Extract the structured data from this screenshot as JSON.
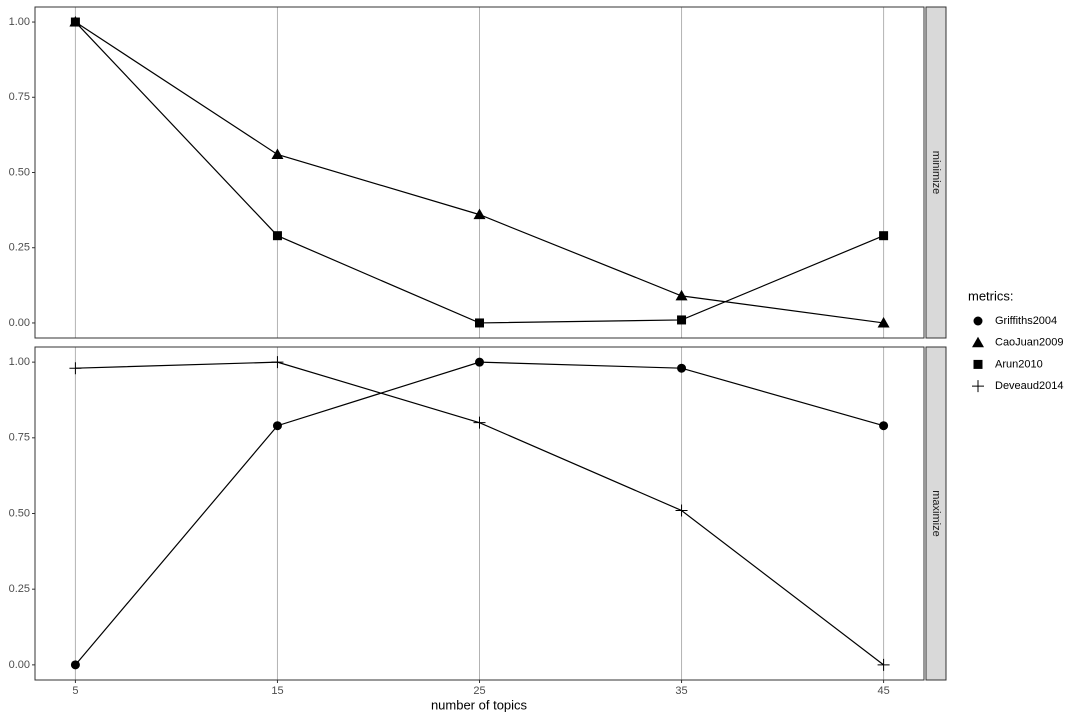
{
  "chart_data": {
    "type": "line",
    "xlabel": "number of topics",
    "x": [
      5,
      15,
      25,
      35,
      45
    ],
    "xlim": [
      3,
      47
    ],
    "xticks": [
      5,
      15,
      25,
      35,
      45
    ],
    "grid": "x",
    "legend_title": "metrics:",
    "legend_position": "right",
    "facets": [
      {
        "label": "minimize",
        "ylim": [
          -0.05,
          1.05
        ],
        "yticks": [
          {
            "value": 0,
            "label": "0.00"
          },
          0.25,
          {
            "value": 0.5,
            "label": "0.50"
          },
          0.75,
          {
            "value": 1,
            "label": "1.00"
          }
        ]
      },
      {
        "label": "maximize",
        "ylim": [
          -0.05,
          1.05
        ],
        "yticks": [
          {
            "value": 0,
            "label": "0.00"
          },
          0.25,
          {
            "value": 0.5,
            "label": "0.50"
          },
          0.75,
          {
            "value": 1,
            "label": "1.00"
          }
        ]
      }
    ],
    "series": [
      {
        "name": "Griffiths2004",
        "color": "#000000",
        "marker": "circle",
        "facet": "maximize",
        "values": [
          0,
          0.79,
          1,
          0.98,
          0.79
        ]
      },
      {
        "name": "CaoJuan2009",
        "color": "#000000",
        "marker": "triangle",
        "facet": "minimize",
        "values": [
          1,
          0.56,
          0.36,
          0.09,
          0
        ]
      },
      {
        "name": "Arun2010",
        "color": "#000000",
        "marker": "square",
        "facet": "minimize",
        "values": [
          1,
          0.29,
          0,
          0.01,
          0.29
        ]
      },
      {
        "name": "Deveaud2014",
        "color": "#000000",
        "marker": "plus",
        "facet": "maximize",
        "values": [
          0.98,
          1,
          0.8,
          0.51,
          0
        ]
      }
    ]
  }
}
